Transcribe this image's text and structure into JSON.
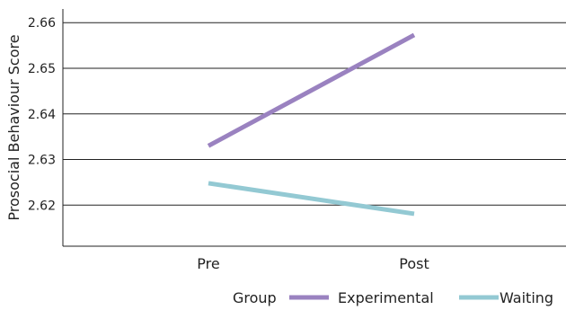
{
  "chart_data": {
    "type": "line",
    "title": "",
    "xlabel": "",
    "ylabel": "Prosocial Behaviour Score",
    "categories": [
      "Pre",
      "Post"
    ],
    "ylim": [
      2.611,
      2.663
    ],
    "yticks": [
      2.62,
      2.63,
      2.64,
      2.65,
      2.66
    ],
    "grid": true,
    "legend": {
      "title": "Group",
      "position": "bottom-right"
    },
    "series": [
      {
        "name": "Experimental",
        "color": "#9a82c0",
        "values": [
          2.633,
          2.6573
        ]
      },
      {
        "name": "Waiting",
        "color": "#93c9d3",
        "values": [
          2.6248,
          2.6181
        ]
      }
    ]
  }
}
